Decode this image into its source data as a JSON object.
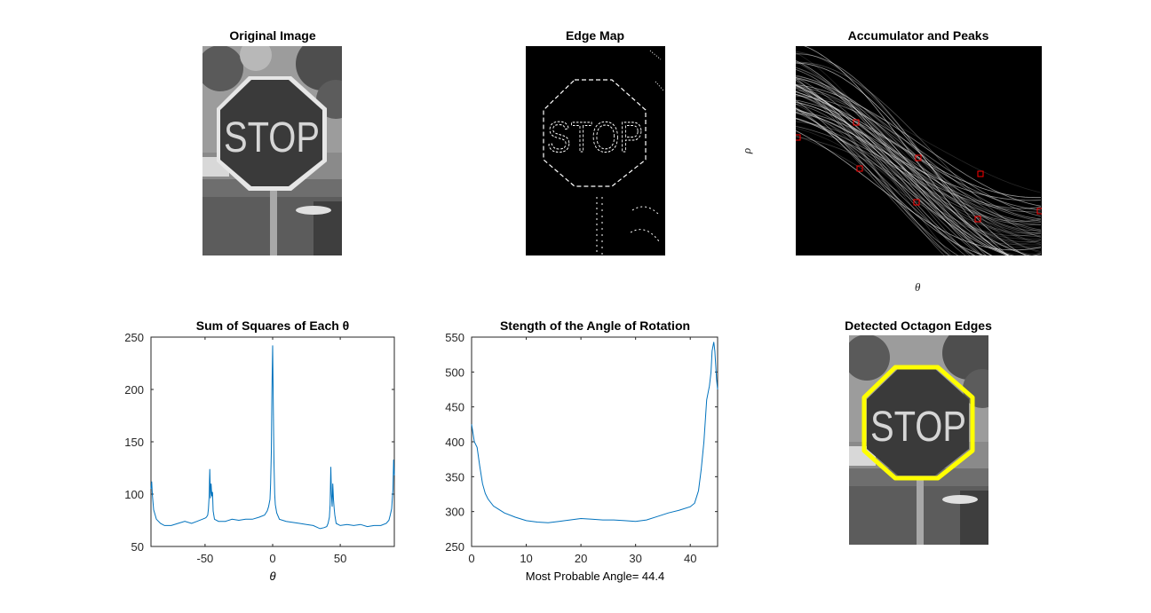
{
  "panels": {
    "original": {
      "title": "Original Image"
    },
    "edge": {
      "title": "Edge Map"
    },
    "accumulator": {
      "title": "Accumulator and Peaks",
      "ylabel_symbol": "ρ",
      "xlabel_symbol": "θ"
    },
    "detected": {
      "title": "Detected Octagon Edges"
    }
  },
  "sign_text": "STOP",
  "colors": {
    "line": "#0072BD",
    "peak": "#ff0000",
    "octagon": "#ffff00",
    "axis": "#262626"
  },
  "chart_data": [
    {
      "type": "line",
      "title": "Sum of Squares of Each θ",
      "xlabel": "θ",
      "ylabel": "",
      "xlim": [
        -90,
        90
      ],
      "ylim": [
        50,
        250
      ],
      "xticks": [
        -50,
        0,
        50
      ],
      "yticks": [
        50,
        100,
        150,
        200,
        250
      ],
      "grid": false,
      "series": [
        {
          "x": [
            -90,
            -89.5,
            -89,
            -88,
            -86,
            -83,
            -80,
            -75,
            -70,
            -65,
            -60,
            -56,
            -52,
            -50,
            -49,
            -48,
            -47.5,
            -47,
            -46.5,
            -46,
            -45.5,
            -45,
            -44.5,
            -44,
            -43,
            -40,
            -35,
            -30,
            -25,
            -20,
            -15,
            -10,
            -6,
            -4,
            -3,
            -2,
            -1.5,
            -1,
            -0.5,
            0,
            0.5,
            1,
            1.5,
            2,
            3,
            5,
            10,
            15,
            20,
            25,
            30,
            35,
            38,
            40,
            41,
            42,
            42.5,
            43,
            43.5,
            44,
            44.5,
            45,
            45.5,
            46,
            47,
            50,
            55,
            60,
            65,
            70,
            75,
            80,
            84,
            86,
            87,
            88,
            88.5,
            89,
            89.5,
            90
          ],
          "y": [
            105,
            112,
            100,
            85,
            76,
            72,
            70,
            70,
            72,
            74,
            72,
            74,
            76,
            77,
            78,
            80,
            86,
            98,
            124,
            96,
            110,
            98,
            102,
            84,
            76,
            74,
            74,
            76,
            75,
            76,
            76,
            78,
            80,
            84,
            88,
            95,
            110,
            140,
            200,
            242,
            180,
            130,
            100,
            90,
            82,
            76,
            74,
            73,
            72,
            71,
            70,
            67,
            68,
            69,
            72,
            78,
            90,
            126,
            100,
            88,
            110,
            95,
            86,
            80,
            72,
            70,
            71,
            70,
            71,
            69,
            70,
            70,
            72,
            75,
            80,
            86,
            95,
            105,
            133,
            118
          ]
        }
      ]
    },
    {
      "type": "line",
      "title": "Stength of the Angle of Rotation",
      "xlabel": "Most Probable Angle= 44.4",
      "ylabel": "",
      "xlim": [
        0,
        45
      ],
      "ylim": [
        250,
        550
      ],
      "xticks": [
        0,
        10,
        20,
        30,
        40
      ],
      "yticks": [
        250,
        300,
        350,
        400,
        450,
        500,
        550
      ],
      "grid": false,
      "series": [
        {
          "x": [
            0,
            0.5,
            1,
            1.5,
            2,
            2.5,
            3,
            4,
            5,
            6,
            8,
            10,
            12,
            14,
            16,
            18,
            20,
            22,
            24,
            26,
            28,
            30,
            32,
            34,
            36,
            38,
            40,
            40.8,
            41.5,
            42,
            42.5,
            43,
            43.5,
            43.8,
            44,
            44.3,
            44.5,
            44.8,
            45
          ],
          "y": [
            425,
            400,
            392,
            365,
            340,
            326,
            318,
            308,
            303,
            298,
            292,
            287,
            285,
            284,
            286,
            288,
            290,
            289,
            288,
            288,
            287,
            286,
            288,
            293,
            298,
            302,
            307,
            312,
            330,
            360,
            400,
            460,
            480,
            500,
            530,
            543,
            530,
            490,
            475
          ]
        }
      ]
    }
  ]
}
